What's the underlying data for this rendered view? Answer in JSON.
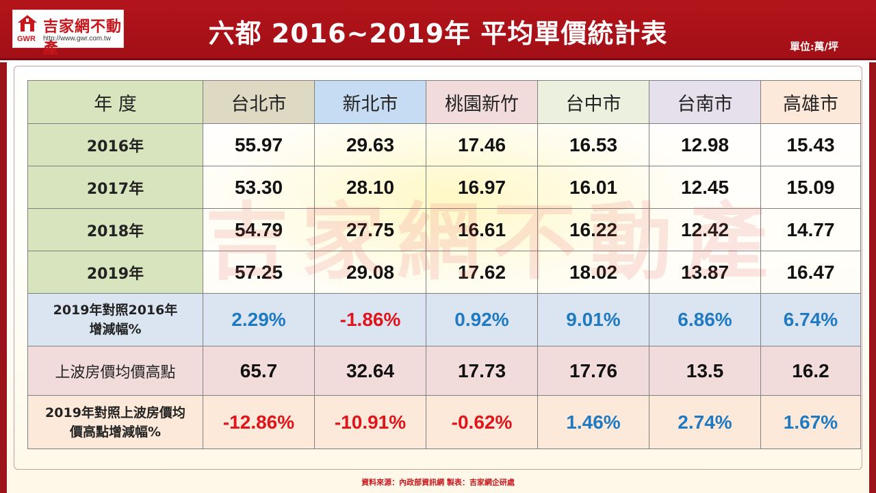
{
  "logo": {
    "name": "吉家網不動產",
    "abbr": "GWR",
    "url": "http://www.gwr.com.tw"
  },
  "title": "六都 2016~2019年 平均單價統計表",
  "unit": "單位:萬/坪",
  "watermark": "吉家網不動產",
  "table": {
    "header_label": "年 度",
    "columns": [
      "台北市",
      "新北市",
      "桃園新竹",
      "台中市",
      "台南市",
      "高雄市"
    ],
    "years": [
      {
        "label": "2016年",
        "values": [
          "55.97",
          "29.63",
          "17.46",
          "16.53",
          "12.98",
          "15.43"
        ]
      },
      {
        "label": "2017年",
        "values": [
          "53.30",
          "28.10",
          "16.97",
          "16.01",
          "12.45",
          "15.09"
        ]
      },
      {
        "label": "2018年",
        "values": [
          "54.79",
          "27.75",
          "16.61",
          "16.22",
          "12.42",
          "14.77"
        ]
      },
      {
        "label": "2019年",
        "values": [
          "57.25",
          "29.08",
          "17.62",
          "18.02",
          "13.87",
          "16.47"
        ]
      }
    ],
    "change_2016": {
      "label_line1": "2019年對照2016年",
      "label_line2": "增減幅%",
      "values": [
        "2.29%",
        "-1.86%",
        "0.92%",
        "9.01%",
        "6.86%",
        "6.74%"
      ]
    },
    "peak": {
      "label": "上波房價均價高點",
      "values": [
        "65.7",
        "32.64",
        "17.73",
        "17.76",
        "13.5",
        "16.2"
      ]
    },
    "change_peak": {
      "label_line1": "2019年對照上波房價均",
      "label_line2": "價高點增減幅%",
      "values": [
        "-12.86%",
        "-10.91%",
        "-0.62%",
        "1.46%",
        "2.74%",
        "1.67%"
      ]
    }
  },
  "colors": {
    "positive": "#1f7ac2",
    "negative": "#e0141b",
    "header_red": "#b3141b"
  },
  "footer": "資料來源：內政部資訊網  製表：吉家網企研處"
}
